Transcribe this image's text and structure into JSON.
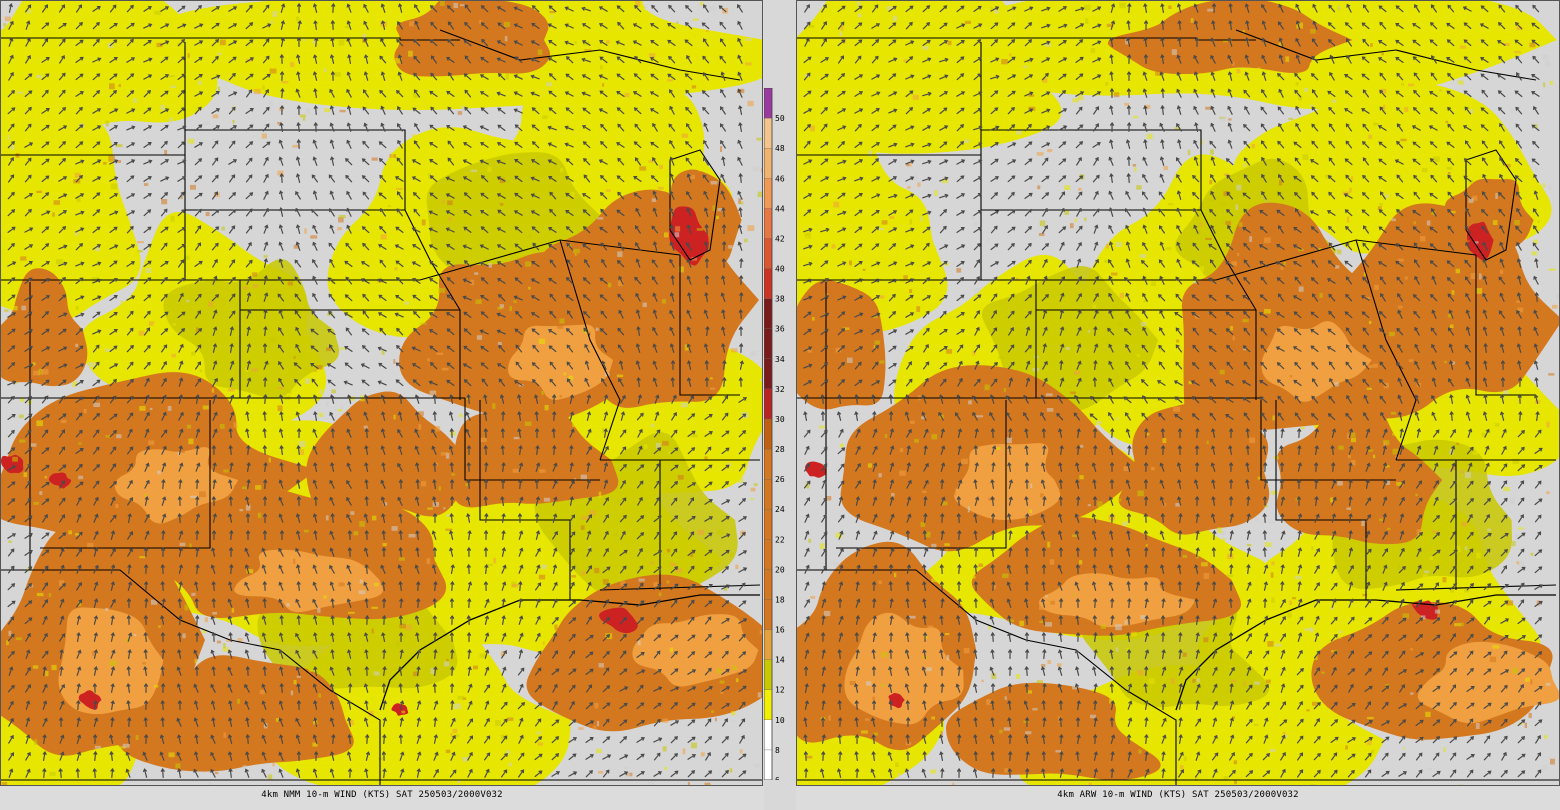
{
  "panels": [
    {
      "id": "left",
      "caption": "4km NMM 10-m WIND (KTS) SAT 250503/2000V032",
      "seed": 11
    },
    {
      "id": "right",
      "caption": "4km ARW 10-m WIND (KTS) SAT 250503/2000V032",
      "seed": 29
    }
  ],
  "legend": {
    "levels": [
      "6",
      "8",
      "10",
      "12",
      "14",
      "16",
      "18",
      "20",
      "22",
      "24",
      "26",
      "28",
      "30",
      "32",
      "34",
      "36",
      "38",
      "40",
      "42",
      "44",
      "46",
      "48",
      "50"
    ],
    "colors": [
      "#ffffff",
      "#ffffff",
      "#f2ef00",
      "#c8c800",
      "#e6a23a",
      "#d4781f",
      "#d4781f",
      "#d4781f",
      "#d4781f",
      "#d4781f",
      "#d4781f",
      "#c06010",
      "#bb2222",
      "#7a1a1a",
      "#7a1a1a",
      "#7a1a1a",
      "#cc3322",
      "#dd5533",
      "#e87744",
      "#f09a55",
      "#f2b36e",
      "#f3c58d",
      "#9a3aa0"
    ]
  },
  "colors": {
    "background": "#d6d6d6",
    "light_wind": "#e6e600",
    "moderate_wind": "#c8c800",
    "strong_wind": "#d4781f",
    "very_strong_wind": "#f0a040",
    "extreme_wind": "#cc2222",
    "arrows": "#4a4a4a",
    "boundaries": "#000000"
  }
}
